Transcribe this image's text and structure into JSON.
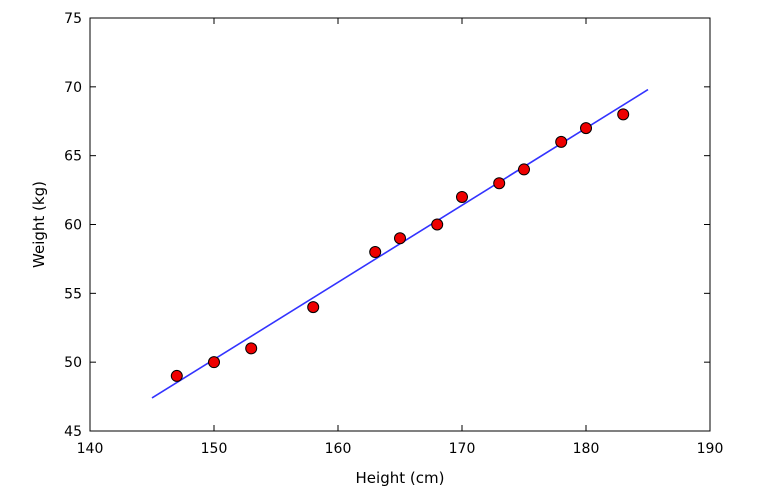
{
  "chart_data": {
    "type": "scatter",
    "title": "",
    "xlabel": "Height (cm)",
    "ylabel": "Weight (kg)",
    "xlim": [
      140,
      190
    ],
    "ylim": [
      45,
      75
    ],
    "xticks": [
      140,
      150,
      160,
      170,
      180,
      190
    ],
    "yticks": [
      45,
      50,
      55,
      60,
      65,
      70,
      75
    ],
    "grid": false,
    "legend": false,
    "series": [
      {
        "type": "scatter",
        "color": "#ee0000",
        "edge_color": "#000000",
        "points": [
          {
            "x": 147,
            "y": 49
          },
          {
            "x": 150,
            "y": 50
          },
          {
            "x": 153,
            "y": 51
          },
          {
            "x": 158,
            "y": 54
          },
          {
            "x": 163,
            "y": 58
          },
          {
            "x": 165,
            "y": 59
          },
          {
            "x": 168,
            "y": 60
          },
          {
            "x": 170,
            "y": 62
          },
          {
            "x": 173,
            "y": 63
          },
          {
            "x": 175,
            "y": 64
          },
          {
            "x": 178,
            "y": 66
          },
          {
            "x": 180,
            "y": 67
          },
          {
            "x": 183,
            "y": 68
          }
        ]
      },
      {
        "type": "line",
        "color": "#3333ff",
        "points": [
          {
            "x": 145,
            "y": 47.4
          },
          {
            "x": 185,
            "y": 69.8
          }
        ]
      }
    ]
  }
}
